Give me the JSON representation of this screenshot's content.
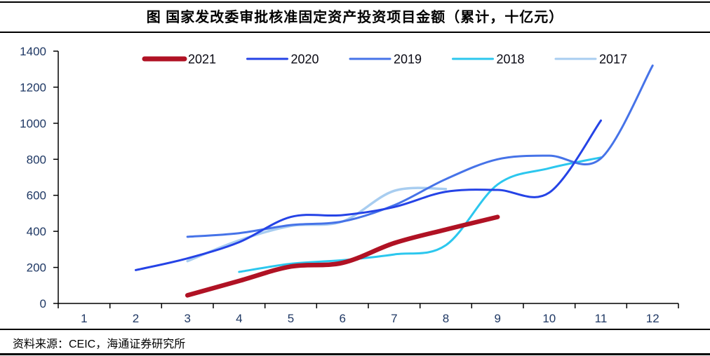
{
  "title": "图  国家发改委审批核准固定资产投资项目金额（累计，十亿元）",
  "source": "资料来源：CEIC，海通证券研究所",
  "colors": {
    "border": "#000000",
    "axis": "#000000",
    "tick_label": "#1f3864",
    "series_2021": "#b01224",
    "series_2020": "#2543e6",
    "series_2019": "#4673e8",
    "series_2018": "#2cc7ee",
    "series_2017": "#a8cdf0"
  },
  "chart_data": {
    "type": "line",
    "title": "图  国家发改委审批核准固定资产投资项目金额（累计，十亿元）",
    "xlabel": "",
    "ylabel": "",
    "x_unit": "month",
    "xticks": [
      "1",
      "2",
      "3",
      "4",
      "5",
      "6",
      "7",
      "8",
      "9",
      "10",
      "11",
      "12"
    ],
    "xlim": [
      0.5,
      12.5
    ],
    "ylim": [
      0,
      1400
    ],
    "ytick_step": 200,
    "yticks": [
      0,
      200,
      400,
      600,
      800,
      1000,
      1200,
      1400
    ],
    "grid": false,
    "legend_position": "top",
    "line_style": "smooth",
    "series": [
      {
        "name": "2017",
        "color": "#a8cdf0",
        "stroke_width": 3.5,
        "points": [
          [
            3,
            235
          ],
          [
            4,
            350
          ],
          [
            5,
            430
          ],
          [
            6,
            455
          ],
          [
            7,
            625
          ],
          [
            8,
            635
          ]
        ]
      },
      {
        "name": "2018",
        "color": "#2cc7ee",
        "stroke_width": 3,
        "points": [
          [
            4,
            175
          ],
          [
            5,
            220
          ],
          [
            6,
            240
          ],
          [
            7,
            272
          ],
          [
            8,
            323
          ],
          [
            9,
            660
          ],
          [
            10,
            750
          ],
          [
            11,
            810
          ]
        ]
      },
      {
        "name": "2019",
        "color": "#4673e8",
        "stroke_width": 3,
        "points": [
          [
            3,
            370
          ],
          [
            4,
            390
          ],
          [
            5,
            435
          ],
          [
            6,
            455
          ],
          [
            7,
            545
          ],
          [
            8,
            690
          ],
          [
            9,
            800
          ],
          [
            10,
            820
          ],
          [
            11,
            805
          ],
          [
            12,
            1320
          ]
        ]
      },
      {
        "name": "2020",
        "color": "#2543e6",
        "stroke_width": 3,
        "points": [
          [
            2,
            185
          ],
          [
            3,
            250
          ],
          [
            4,
            340
          ],
          [
            5,
            480
          ],
          [
            6,
            490
          ],
          [
            7,
            535
          ],
          [
            8,
            620
          ],
          [
            9,
            630
          ],
          [
            10,
            615
          ],
          [
            11,
            1015
          ]
        ]
      },
      {
        "name": "2021",
        "color": "#b01224",
        "stroke_width": 6.5,
        "points": [
          [
            3,
            45
          ],
          [
            4,
            125
          ],
          [
            5,
            205
          ],
          [
            6,
            225
          ],
          [
            7,
            335
          ],
          [
            8,
            410
          ],
          [
            9,
            480
          ]
        ]
      }
    ],
    "legend_order": [
      "2021",
      "2020",
      "2019",
      "2018",
      "2017"
    ]
  }
}
